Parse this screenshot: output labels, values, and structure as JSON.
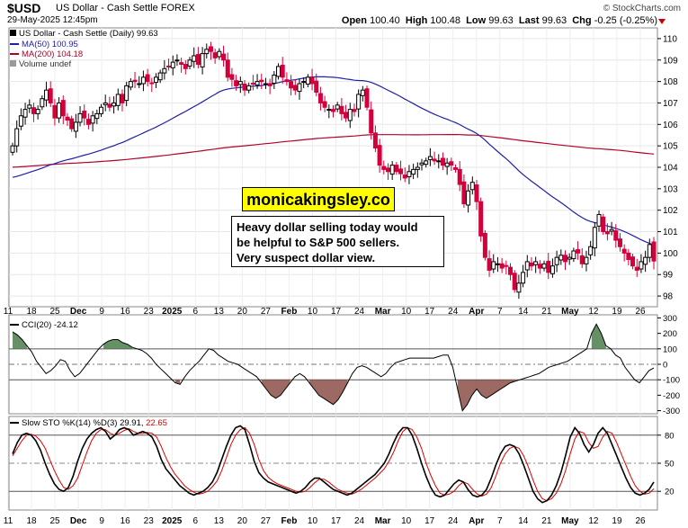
{
  "header": {
    "ticker": "$USD",
    "company": "US Dollar - Cash Settle FOREX",
    "date": "29-May-2025 12:45pm",
    "brand": "© StockCharts.com",
    "open_label": "Open",
    "open_value": "100.40",
    "high_label": "High",
    "high_value": "100.48",
    "low_label": "Low",
    "low_value": "99.63",
    "last_label": "Last",
    "last_value": "99.63",
    "chg_label": "Chg",
    "chg_value": "-0.25 (-0.25%)"
  },
  "legend": {
    "main": "US Dollar - Cash Settle (Daily) 99.63",
    "ma50": "MA(50) 100.95",
    "ma200": "MA(200) 104.18",
    "volume": "Volume undef"
  },
  "watermark": "monicakingsley.co",
  "annotation": {
    "line1": "Heavy dollar selling today would",
    "line2": "be helpful to S&P 500 sellers.",
    "line3": "Very suspect dollar view."
  },
  "cci_panel": {
    "title": "CCI(20) -24.12"
  },
  "sto_panel": {
    "title": "Slow STO %K(14) %D(3) 29.91,",
    "d_value": "22.65"
  },
  "x_axis_labels": [
    "11",
    "18",
    "25",
    "Dec",
    "9",
    "16",
    "23",
    "2025",
    "6",
    "13",
    "20",
    "27",
    "Feb",
    "10",
    "17",
    "24",
    "Mar",
    "10",
    "17",
    "24",
    "Apr",
    "7",
    "14",
    "21",
    "May",
    "12",
    "19",
    "26"
  ],
  "colors": {
    "up": "#000000",
    "down": "#d4003c",
    "ma50": "#1f1fa8",
    "ma200": "#b3002a",
    "cci_fill": "#4b7d4b",
    "cci_fill_neg": "#8b5046",
    "sto_k": "#000000",
    "sto_d": "#e00000"
  },
  "chart_data": [
    {
      "type": "candlestick",
      "title": "US Dollar - Cash Settle (Daily)",
      "x_start": "2024-11-11",
      "y_ticks": [
        98,
        99,
        100,
        101,
        102,
        103,
        104,
        105,
        106,
        107,
        108,
        109,
        110
      ],
      "ylim": [
        97.5,
        110.5
      ],
      "closes": [
        105.0,
        105.8,
        106.4,
        106.7,
        106.9,
        106.5,
        106.7,
        107.2,
        107.6,
        107.0,
        106.3,
        107.0,
        106.4,
        106.2,
        105.8,
        106.1,
        106.5,
        106.3,
        106.0,
        106.4,
        106.5,
        106.8,
        107.0,
        106.8,
        107.0,
        107.4,
        107.0,
        107.8,
        108.0,
        108.0,
        107.9,
        108.2,
        108.0,
        107.9,
        108.2,
        108.4,
        108.6,
        108.7,
        108.9,
        109.0,
        108.8,
        108.6,
        109.0,
        109.2,
        108.8,
        109.3,
        109.5,
        109.4,
        109.1,
        109.4,
        109.0,
        108.2,
        108.1,
        107.8,
        108.0,
        107.6,
        107.8,
        107.9,
        108.0,
        108.0,
        107.9,
        107.8,
        108.3,
        108.7,
        108.2,
        108.0,
        107.7,
        107.6,
        107.9,
        108.0,
        108.2,
        107.9,
        107.5,
        107.0,
        106.8,
        106.7,
        106.6,
        106.9,
        106.5,
        106.3,
        106.7,
        106.6,
        107.4,
        107.6,
        106.8,
        105.6,
        104.9,
        104.1,
        103.9,
        103.8,
        104.1,
        103.8,
        103.7,
        103.5,
        103.8,
        103.9,
        104.0,
        104.2,
        104.3,
        104.5,
        104.3,
        104.3,
        104.1,
        104.2,
        104.1,
        103.9,
        103.2,
        102.3,
        102.9,
        103.3,
        102.4,
        100.8,
        99.8,
        99.2,
        99.6,
        99.5,
        99.3,
        99.4,
        99.0,
        98.3,
        98.6,
        99.1,
        99.6,
        99.4,
        99.6,
        99.3,
        99.5,
        99.1,
        99.4,
        99.8,
        99.9,
        99.6,
        99.8,
        100.1,
        100.0,
        99.5,
        99.8,
        100.3,
        101.2,
        101.8,
        101.0,
        100.9,
        101.1,
        100.6,
        100.3,
        100.0,
        99.7,
        99.4,
        99.2,
        99.6,
        99.8,
        100.4,
        99.63
      ]
    },
    {
      "type": "line",
      "name": "CCI(20)",
      "y_ticks": [
        -300,
        -200,
        -100,
        0,
        100,
        200,
        300
      ],
      "ylim": [
        -320,
        320
      ],
      "x_start_index": 0,
      "values": [
        210,
        190,
        160,
        120,
        80,
        20,
        -20,
        -60,
        -40,
        -10,
        30,
        20,
        -40,
        -80,
        -60,
        -20,
        20,
        60,
        100,
        130,
        150,
        160,
        160,
        140,
        130,
        110,
        100,
        90,
        70,
        40,
        0,
        -30,
        -60,
        -90,
        -120,
        -130,
        -80,
        -40,
        -10,
        20,
        60,
        100,
        90,
        60,
        40,
        20,
        10,
        0,
        -20,
        -40,
        -60,
        -80,
        -120,
        -160,
        -200,
        -220,
        -200,
        -160,
        -120,
        -80,
        -60,
        -80,
        -120,
        -160,
        -200,
        -220,
        -240,
        -260,
        -230,
        -180,
        -120,
        -60,
        -20,
        -10,
        -20,
        -40,
        -60,
        -80,
        -60,
        -20,
        10,
        20,
        30,
        40,
        40,
        40,
        40,
        40,
        40,
        50,
        60,
        60,
        -20,
        -160,
        -300,
        -260,
        -200,
        -160,
        -200,
        -220,
        -200,
        -180,
        -160,
        -140,
        -120,
        -110,
        -100,
        -90,
        -80,
        -70,
        -60,
        -40,
        -20,
        -10,
        0,
        10,
        20,
        40,
        60,
        80,
        100,
        200,
        260,
        200,
        120,
        100,
        60,
        40,
        -20,
        -60,
        -100,
        -120,
        -80,
        -40,
        -24
      ]
    },
    {
      "type": "line",
      "name": "Slow STO %K(14) %D(3)",
      "y_ticks": [
        20,
        50,
        80
      ],
      "ylim": [
        0,
        100
      ],
      "k": [
        60,
        72,
        80,
        82,
        80,
        74,
        64,
        50,
        38,
        28,
        22,
        20,
        24,
        36,
        52,
        66,
        76,
        82,
        86,
        88,
        84,
        76,
        80,
        86,
        88,
        86,
        80,
        82,
        84,
        82,
        78,
        68,
        54,
        44,
        38,
        32,
        26,
        22,
        18,
        16,
        18,
        20,
        24,
        30,
        40,
        54,
        68,
        80,
        88,
        90,
        86,
        70,
        52,
        40,
        34,
        30,
        28,
        26,
        24,
        22,
        20,
        18,
        20,
        24,
        30,
        34,
        34,
        30,
        26,
        22,
        20,
        18,
        16,
        18,
        22,
        26,
        30,
        34,
        38,
        44,
        50,
        60,
        72,
        82,
        88,
        88,
        80,
        66,
        50,
        36,
        24,
        16,
        14,
        16,
        22,
        28,
        32,
        30,
        22,
        16,
        14,
        16,
        22,
        34,
        48,
        60,
        68,
        70,
        68,
        60,
        48,
        34,
        20,
        12,
        8,
        10,
        16,
        26,
        40,
        58,
        78,
        88,
        82,
        70,
        62,
        70,
        82,
        88,
        82,
        70,
        58,
        46,
        34,
        24,
        18,
        16,
        18,
        22,
        29.91
      ],
      "d": [
        58,
        66,
        74,
        80,
        81,
        79,
        74,
        66,
        54,
        42,
        32,
        24,
        22,
        26,
        34,
        48,
        62,
        74,
        82,
        86,
        86,
        82,
        80,
        82,
        85,
        87,
        84,
        82,
        82,
        83,
        82,
        78,
        68,
        56,
        46,
        38,
        32,
        26,
        22,
        19,
        17,
        18,
        20,
        25,
        31,
        42,
        56,
        70,
        80,
        86,
        88,
        82,
        70,
        54,
        42,
        35,
        31,
        28,
        26,
        24,
        22,
        20,
        19,
        20,
        24,
        29,
        33,
        33,
        30,
        26,
        22,
        20,
        18,
        17,
        19,
        22,
        26,
        30,
        34,
        39,
        44,
        52,
        62,
        74,
        84,
        88,
        86,
        78,
        66,
        50,
        37,
        26,
        18,
        16,
        17,
        20,
        26,
        30,
        28,
        22,
        17,
        15,
        17,
        24,
        36,
        50,
        60,
        66,
        68,
        66,
        58,
        46,
        32,
        20,
        12,
        10,
        12,
        18,
        28,
        42,
        60,
        76,
        84,
        82,
        72,
        66,
        68,
        78,
        84,
        82,
        72,
        60,
        48,
        36,
        26,
        20,
        17,
        18,
        22.65
      ]
    }
  ]
}
